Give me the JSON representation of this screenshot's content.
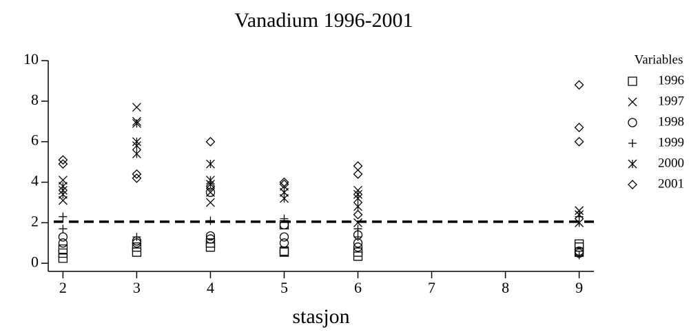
{
  "chart_data": {
    "type": "scatter",
    "title": "Vanadium 1996-2001",
    "xlabel": "stasjon",
    "legend_title": "Variables",
    "xlim": [
      1.8,
      9.2
    ],
    "xticks": [
      2,
      3,
      4,
      5,
      6,
      7,
      8,
      9
    ],
    "ylim": [
      -0.4,
      10
    ],
    "yticks": [
      0,
      2,
      4,
      6,
      8,
      10
    ],
    "hline": 2.05,
    "color": "#000000",
    "series": [
      {
        "name": "1996",
        "marker": "square",
        "x": [
          2,
          2,
          2,
          3,
          3,
          4,
          4,
          5,
          5,
          5,
          6,
          6,
          9,
          9,
          9
        ],
        "values": [
          0.25,
          0.5,
          0.7,
          0.55,
          0.8,
          0.8,
          1.0,
          0.55,
          0.6,
          1.9,
          0.35,
          0.55,
          0.55,
          0.8,
          0.95
        ]
      },
      {
        "name": "1997",
        "marker": "x",
        "x": [
          2,
          2,
          3,
          3,
          4,
          4,
          5,
          6,
          6,
          9
        ],
        "values": [
          3.1,
          4.1,
          7.0,
          7.7,
          3.0,
          3.5,
          3.8,
          2.0,
          3.6,
          2.6
        ]
      },
      {
        "name": "1998",
        "marker": "circle",
        "x": [
          2,
          2,
          3,
          3,
          4,
          4,
          4,
          5,
          5,
          5,
          6,
          6,
          6,
          9,
          9
        ],
        "values": [
          1.0,
          1.3,
          1.0,
          1.1,
          1.2,
          1.35,
          3.5,
          1.0,
          1.3,
          1.9,
          0.8,
          1.0,
          1.4,
          0.5,
          0.6
        ]
      },
      {
        "name": "1999",
        "marker": "plus",
        "x": [
          2,
          2,
          3,
          4,
          5,
          6,
          6,
          9,
          9
        ],
        "values": [
          1.7,
          2.3,
          1.3,
          2.1,
          2.2,
          1.7,
          1.3,
          0.4,
          2.3
        ]
      },
      {
        "name": "2000",
        "marker": "star",
        "x": [
          2,
          2,
          2,
          3,
          3,
          3,
          3,
          4,
          4,
          4,
          5,
          5,
          6,
          6,
          6,
          9,
          9
        ],
        "values": [
          3.4,
          3.6,
          3.8,
          5.4,
          5.8,
          6.0,
          6.9,
          3.9,
          4.1,
          4.9,
          3.2,
          3.5,
          2.8,
          3.2,
          3.4,
          2.0,
          2.4
        ]
      },
      {
        "name": "2001",
        "marker": "diamond",
        "x": [
          2,
          2,
          3,
          3,
          4,
          4,
          5,
          5,
          6,
          6,
          6,
          9,
          9,
          9
        ],
        "values": [
          4.9,
          5.1,
          4.2,
          4.4,
          6.0,
          3.8,
          3.9,
          4.0,
          2.4,
          4.4,
          4.8,
          6.0,
          6.7,
          8.8
        ]
      }
    ]
  }
}
